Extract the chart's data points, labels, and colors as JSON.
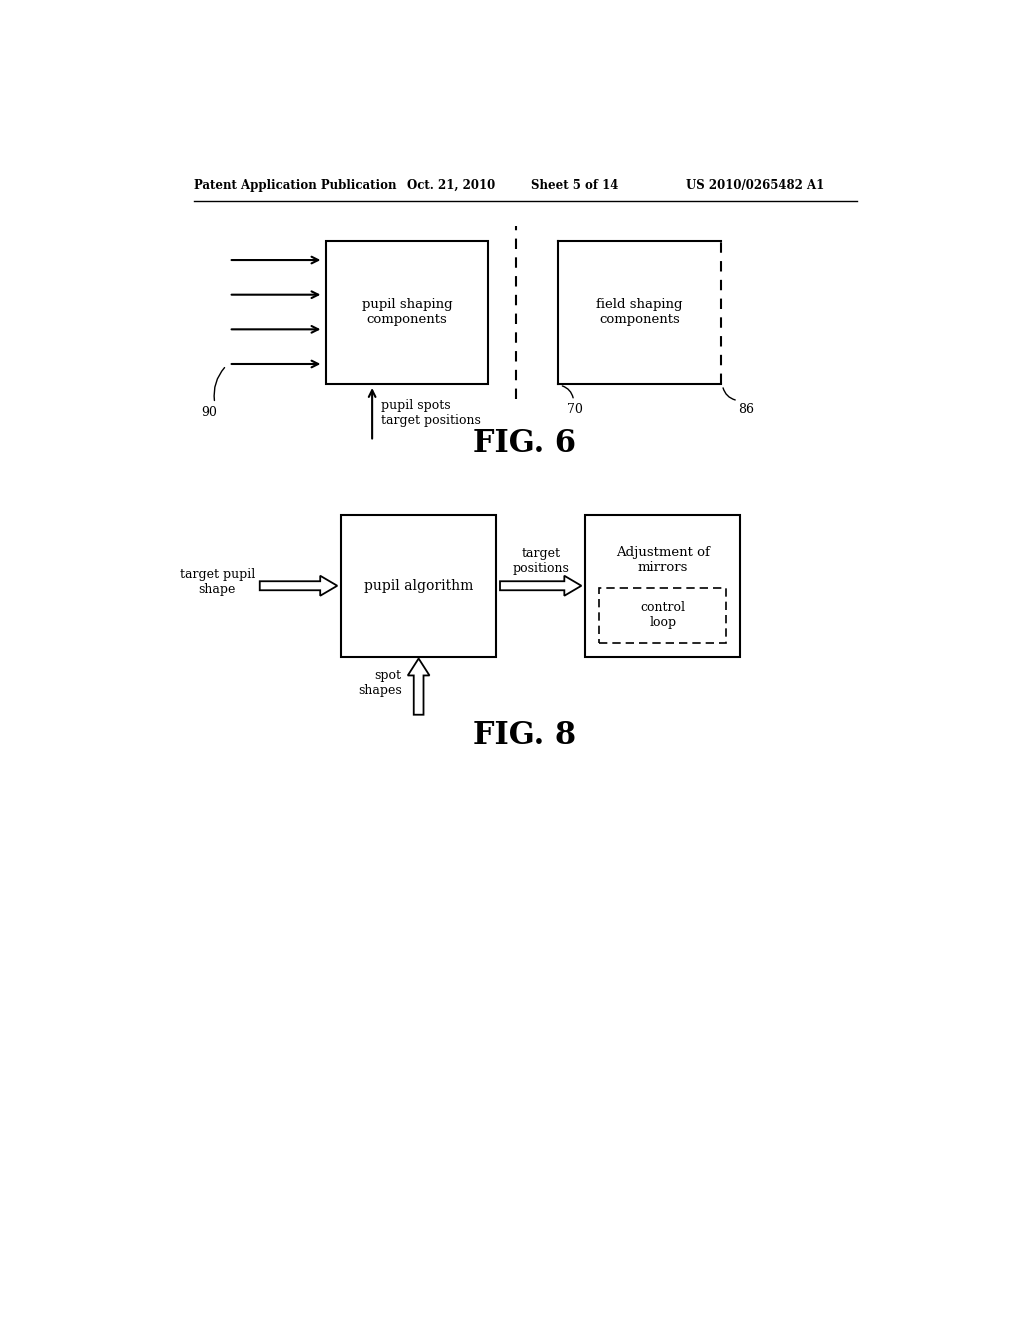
{
  "bg_color": "#ffffff",
  "header_text": "Patent Application Publication",
  "header_date": "Oct. 21, 2010",
  "header_sheet": "Sheet 5 of 14",
  "header_patent": "US 2010/0265482 A1",
  "fig6_label": "FIG. 6",
  "fig8_label": "FIG. 8",
  "fig6_box1_text": "pupil shaping\ncomponents",
  "fig6_box2_text": "field shaping\ncomponents",
  "fig6_label_70": "70",
  "fig6_label_86": "86",
  "fig6_label_90": "90",
  "fig6_arrow_label": "pupil spots\ntarget positions",
  "fig8_box1_text": "pupil algorithm",
  "fig8_box2_text": "Adjustment of\nmirrors",
  "fig8_dashed_text": "control\nloop",
  "fig8_label_left": "target pupil\nshape",
  "fig8_label_mid": "target\npositions",
  "fig8_label_bot": "spot\nshapes"
}
